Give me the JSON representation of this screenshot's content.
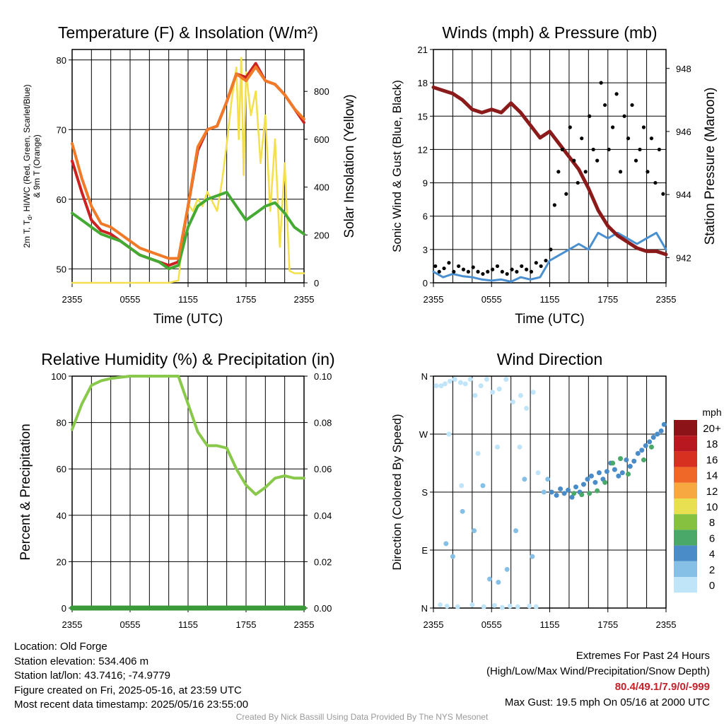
{
  "colors": {
    "temp": "#cc2222",
    "dew": "#44aa33",
    "hi": "#cc2222",
    "t9": "#f07a28",
    "solar": "#f3e04a",
    "wind": "#4a90d0",
    "gust": "#000000",
    "pressure": "#8b1a1a",
    "rh": "#88c84a",
    "precip": "#3a9a3a"
  },
  "wind_speed_colors": [
    "#c0e4f8",
    "#86c0e6",
    "#4a8cc8",
    "#4aa868",
    "#86c240",
    "#e8e050",
    "#f8a840",
    "#f06828",
    "#d83020",
    "#b81820",
    "#8c1418"
  ],
  "chart_data": [
    {
      "type": "line",
      "title": "Temperature (F) & Insolation (W/m²)",
      "xlabel": "Time (UTC)",
      "ylabel_left": "2m T, Td, HI/WC (Red, Green, Scarlet/Blue) & 9m T (Orange)",
      "ylabel_right": "Solar Insolation (Yellow)",
      "x_ticks": [
        "2355",
        "0555",
        "1155",
        "1755",
        "2355"
      ],
      "ylim": [
        48,
        81.5
      ],
      "yticks": [
        50,
        60,
        70,
        80
      ],
      "ylim_right": [
        0,
        975
      ],
      "yticks_right": [
        0,
        200,
        400,
        600,
        800
      ],
      "series": [
        {
          "name": "2m T",
          "color": "temp",
          "axis": "left",
          "x": [
            0,
            1,
            2,
            3,
            4,
            5,
            6,
            7,
            8,
            9,
            10,
            11,
            12,
            13,
            14,
            15,
            16,
            17,
            18,
            19,
            20,
            21,
            22,
            23,
            24
          ],
          "values": [
            65.5,
            61,
            57,
            55.5,
            55,
            54,
            53,
            52,
            51.5,
            51,
            50.5,
            51,
            59,
            67,
            70,
            70.5,
            74,
            78,
            77.5,
            79.5,
            77,
            76.5,
            75,
            73,
            71
          ]
        },
        {
          "name": "Td",
          "color": "dew",
          "axis": "left",
          "x": [
            0,
            1,
            2,
            3,
            4,
            5,
            6,
            7,
            8,
            9,
            10,
            11,
            12,
            13,
            14,
            15,
            16,
            17,
            18,
            19,
            20,
            21,
            22,
            23,
            24
          ],
          "values": [
            58,
            57,
            56,
            55,
            54.5,
            54,
            53,
            52,
            51.5,
            51,
            50,
            50.5,
            56,
            59,
            60,
            60.5,
            61,
            59,
            57,
            58,
            59,
            59.5,
            58,
            56,
            55
          ]
        },
        {
          "name": "9m T",
          "color": "t9",
          "axis": "left",
          "x": [
            0,
            1,
            2,
            3,
            4,
            5,
            6,
            7,
            8,
            9,
            10,
            11,
            12,
            13,
            14,
            15,
            16,
            17,
            18,
            19,
            20,
            21,
            22,
            23,
            24
          ],
          "values": [
            68,
            63,
            59,
            56.5,
            56,
            55,
            54,
            53,
            52.5,
            52,
            51.5,
            51.5,
            59,
            67.5,
            70,
            70.5,
            74,
            78,
            77,
            79,
            77,
            76.5,
            75,
            73,
            71.5
          ]
        },
        {
          "name": "Solar",
          "color": "solar",
          "axis": "right",
          "x": [
            0,
            10,
            11,
            11.5,
            12,
            12.5,
            13,
            13.5,
            14,
            14.5,
            15,
            15.5,
            16,
            16.5,
            17,
            17.25,
            17.5,
            17.75,
            18,
            18.5,
            19,
            19.5,
            20,
            20.5,
            21,
            21.5,
            22,
            22.5,
            23,
            24
          ],
          "values": [
            0,
            0,
            10,
            200,
            330,
            300,
            350,
            320,
            380,
            340,
            300,
            420,
            580,
            760,
            900,
            600,
            940,
            450,
            880,
            700,
            800,
            500,
            700,
            300,
            600,
            150,
            500,
            50,
            40,
            40
          ]
        }
      ]
    },
    {
      "type": "line",
      "title": "Winds (mph) & Pressure (mb)",
      "xlabel": "Time (UTC)",
      "ylabel_left": "Sonic Wind & Gust (Blue, Black)",
      "ylabel_right": "Station Pressure (Maroon)",
      "x_ticks": [
        "2355",
        "0555",
        "1155",
        "1755",
        "2355"
      ],
      "ylim": [
        0,
        21
      ],
      "yticks": [
        0,
        3,
        6,
        9,
        12,
        15,
        18,
        21
      ],
      "ylim_right": [
        941.2,
        948.6
      ],
      "yticks_right": [
        942,
        944,
        946,
        948
      ],
      "series": [
        {
          "name": "Sonic Wind",
          "color": "wind",
          "axis": "left",
          "x": [
            0,
            1,
            2,
            3,
            4,
            5,
            6,
            7,
            8,
            9,
            10,
            11,
            12,
            13,
            14,
            15,
            16,
            17,
            18,
            19,
            20,
            21,
            22,
            23,
            24
          ],
          "values": [
            1,
            0.5,
            0.8,
            0.6,
            0.5,
            0.3,
            0.2,
            0.3,
            0.1,
            0.5,
            0.3,
            0.5,
            2,
            2.5,
            3,
            3.5,
            3,
            4.5,
            4,
            4.5,
            4,
            3.5,
            4,
            4.5,
            3
          ]
        },
        {
          "name": "Pressure",
          "color": "pressure",
          "axis": "right",
          "x": [
            0,
            1,
            2,
            3,
            4,
            5,
            6,
            7,
            8,
            9,
            10,
            11,
            12,
            13,
            14,
            15,
            16,
            17,
            18,
            19,
            20,
            21,
            22,
            23,
            24
          ],
          "values": [
            947.4,
            947.3,
            947.2,
            947,
            946.7,
            946.6,
            946.7,
            946.6,
            946.9,
            946.6,
            946.2,
            945.8,
            946,
            945.6,
            945.2,
            944.8,
            944.2,
            943.5,
            943.0,
            942.7,
            942.5,
            942.3,
            942.2,
            942.2,
            942.1
          ]
        },
        {
          "name": "Gust",
          "color": "gust",
          "axis": "left",
          "type": "scatter",
          "x": [
            0.2,
            0.6,
            1.1,
            1.6,
            2.1,
            2.6,
            3.1,
            3.6,
            4.1,
            4.6,
            5.1,
            5.6,
            6.1,
            6.6,
            7.1,
            7.6,
            8.1,
            8.6,
            9.1,
            9.6,
            10.1,
            10.6,
            11.1,
            11.6,
            12.1,
            12.5,
            12.9,
            13.3,
            13.7,
            14.1,
            14.5,
            14.9,
            15.3,
            15.7,
            16.1,
            16.5,
            16.9,
            17.3,
            17.7,
            18.1,
            18.5,
            18.9,
            19.3,
            19.7,
            20.1,
            20.5,
            20.9,
            21.3,
            21.7,
            22.1,
            22.5,
            22.9,
            23.3,
            23.7
          ],
          "values": [
            1.5,
            1,
            1.3,
            1.8,
            1,
            1.5,
            1.2,
            1,
            1.4,
            1,
            0.8,
            1,
            1.2,
            1.5,
            1,
            0.8,
            1.2,
            1,
            1.5,
            1.2,
            1,
            1.8,
            1.5,
            2,
            3,
            7,
            10,
            12,
            8,
            14,
            11,
            9,
            13,
            10,
            15,
            12,
            11,
            18,
            16,
            12,
            14,
            17,
            10,
            15,
            13,
            16,
            11,
            12,
            14,
            10,
            13,
            9,
            12,
            8
          ]
        }
      ]
    },
    {
      "type": "line",
      "title": "Relative Humidity (%) & Precipitation (in)",
      "ylabel_left": "Percent & Precipitation",
      "x_ticks": [
        "2355",
        "0555",
        "1155",
        "1755",
        "2355"
      ],
      "ylim": [
        0,
        100
      ],
      "yticks": [
        0,
        20,
        40,
        60,
        80,
        100
      ],
      "ylim_right": [
        0,
        0.1
      ],
      "yticks_right": [
        "0.00",
        "0.02",
        "0.04",
        "0.06",
        "0.08",
        "0.10"
      ],
      "series": [
        {
          "name": "RH",
          "color": "rh",
          "axis": "left",
          "x": [
            0,
            1,
            2,
            3,
            4,
            5,
            6,
            7,
            8,
            9,
            10,
            11,
            12,
            13,
            14,
            15,
            16,
            17,
            18,
            19,
            20,
            21,
            22,
            23,
            24
          ],
          "values": [
            77,
            88,
            96,
            98,
            99,
            99.5,
            100,
            100,
            100,
            100,
            100,
            100,
            88,
            76,
            70,
            70,
            69,
            60,
            53,
            49,
            52,
            56,
            57,
            56,
            56
          ]
        },
        {
          "name": "Precip",
          "color": "precip",
          "axis": "right",
          "x": [
            0,
            24
          ],
          "values": [
            0,
            0
          ]
        }
      ]
    },
    {
      "type": "scatter",
      "title": "Wind Direction",
      "ylabel_left": "Direction (Colored By Speed)",
      "x_ticks": [
        "2355",
        "0555",
        "1155",
        "1755",
        "2355"
      ],
      "ylim": [
        0,
        360
      ],
      "yticks": [
        "N",
        "E",
        "S",
        "W",
        "N"
      ],
      "legend_title": "mph",
      "legend_labels": [
        "0",
        "2",
        "4",
        "6",
        "8",
        "10",
        "12",
        "14",
        "16",
        "18",
        "20+"
      ],
      "points": [
        [
          0.3,
          345,
          0
        ],
        [
          0.8,
          345,
          0
        ],
        [
          1.2,
          348,
          0
        ],
        [
          1.7,
          352,
          0
        ],
        [
          2.2,
          355,
          0
        ],
        [
          2.8,
          350,
          0
        ],
        [
          3.3,
          348,
          0
        ],
        [
          3.8,
          355,
          0
        ],
        [
          4.3,
          330,
          0
        ],
        [
          4.9,
          345,
          0
        ],
        [
          5.5,
          355,
          0
        ],
        [
          6.1,
          335,
          0
        ],
        [
          6.8,
          340,
          0
        ],
        [
          7.5,
          355,
          0
        ],
        [
          8.2,
          320,
          0
        ],
        [
          9.0,
          330,
          0
        ],
        [
          9.6,
          310,
          0
        ],
        [
          10.3,
          335,
          0
        ],
        [
          0.7,
          5,
          0
        ],
        [
          1.4,
          3,
          0
        ],
        [
          2.5,
          2,
          0
        ],
        [
          4.0,
          5,
          0
        ],
        [
          5.2,
          2,
          0
        ],
        [
          6.3,
          4,
          0
        ],
        [
          7.1,
          1,
          0
        ],
        [
          7.9,
          3,
          0
        ],
        [
          8.7,
          2,
          0
        ],
        [
          9.9,
          3,
          0
        ],
        [
          10.6,
          2,
          0
        ],
        [
          1.3,
          100,
          1
        ],
        [
          2.0,
          80,
          1
        ],
        [
          3.0,
          150,
          1
        ],
        [
          4.2,
          120,
          1
        ],
        [
          5.1,
          190,
          1
        ],
        [
          5.8,
          45,
          1
        ],
        [
          6.7,
          40,
          1
        ],
        [
          7.6,
          60,
          1
        ],
        [
          8.5,
          120,
          1
        ],
        [
          9.4,
          200,
          1
        ],
        [
          10.2,
          80,
          1
        ],
        [
          1.6,
          270,
          0
        ],
        [
          2.9,
          190,
          0
        ],
        [
          4.6,
          240,
          0
        ],
        [
          6.6,
          250,
          0
        ],
        [
          8.9,
          250,
          0
        ],
        [
          10.8,
          210,
          0
        ],
        [
          11.4,
          180,
          1
        ],
        [
          11.8,
          200,
          1
        ],
        [
          12.2,
          180,
          2
        ],
        [
          12.7,
          175,
          2
        ],
        [
          13.1,
          185,
          2
        ],
        [
          13.5,
          178,
          2
        ],
        [
          13.9,
          183,
          2
        ],
        [
          14.3,
          172,
          2
        ],
        [
          14.7,
          188,
          2
        ],
        [
          15.1,
          180,
          2
        ],
        [
          15.5,
          192,
          2
        ],
        [
          15.9,
          200,
          2
        ],
        [
          16.3,
          205,
          2
        ],
        [
          16.7,
          195,
          2
        ],
        [
          17.1,
          210,
          2
        ],
        [
          17.5,
          200,
          2
        ],
        [
          17.9,
          212,
          2
        ],
        [
          18.3,
          225,
          2
        ],
        [
          18.7,
          215,
          2
        ],
        [
          19.1,
          205,
          2
        ],
        [
          19.5,
          210,
          2
        ],
        [
          19.9,
          230,
          2
        ],
        [
          20.3,
          220,
          2
        ],
        [
          20.7,
          228,
          2
        ],
        [
          21.1,
          240,
          2
        ],
        [
          21.5,
          245,
          2
        ],
        [
          21.9,
          252,
          2
        ],
        [
          22.3,
          258,
          2
        ],
        [
          22.7,
          265,
          2
        ],
        [
          23.1,
          270,
          2
        ],
        [
          23.5,
          275,
          2
        ],
        [
          23.8,
          285,
          2
        ],
        [
          14.5,
          178,
          3
        ],
        [
          15.3,
          176,
          3
        ],
        [
          16.1,
          178,
          3
        ],
        [
          16.9,
          182,
          3
        ],
        [
          17.7,
          195,
          3
        ],
        [
          18.5,
          225,
          3
        ],
        [
          19.3,
          232,
          3
        ],
        [
          20.1,
          208,
          3
        ],
        [
          21.7,
          230,
          3
        ],
        [
          22.5,
          250,
          3
        ]
      ]
    }
  ],
  "info": {
    "location": "Location: Old Forge",
    "elevation": "Station elevation: 534.406 m",
    "latlon": "Station lat/lon: 43.7416; -74.9779",
    "created": "Figure created on Fri, 2025-05-16, at 23:59 UTC",
    "recent": "Most recent data timestamp: 2025/05/16 23:55:00"
  },
  "extremes": {
    "title": "Extremes For Past 24 Hours",
    "subtitle": "(High/Low/Max Wind/Precipitation/Snow Depth)",
    "values": "80.4/49.1/7.9/0/-999",
    "gust": "Max Gust: 19.5 mph On 05/16 at 2000 UTC"
  },
  "credit": "Created By Nick Bassill Using Data Provided By The NYS Mesonet"
}
